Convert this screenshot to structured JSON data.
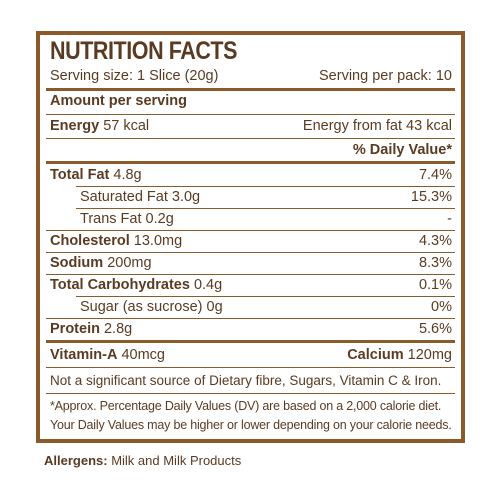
{
  "title": "NUTRITION FACTS",
  "serving_size": "Serving size: 1 Slice (20g)",
  "serving_per_pack": "Serving per pack: 10",
  "amount_per_serving": "Amount per serving",
  "energy": {
    "label": "Energy",
    "value": "57 kcal"
  },
  "energy_from_fat": "Energy from fat 43 kcal",
  "daily_value_header": "% Daily Value*",
  "nutrients": [
    {
      "label": "Total Fat",
      "amount": "4.8g",
      "dv": "7.4%"
    },
    {
      "label": "Saturated Fat",
      "amount": "3.0g",
      "dv": "15.3%"
    },
    {
      "label": "Trans Fat",
      "amount": "0.2g",
      "dv": "-"
    },
    {
      "label": "Cholesterol",
      "amount": "13.0mg",
      "dv": "4.3%"
    },
    {
      "label": "Sodium",
      "amount": "200mg",
      "dv": "8.3%"
    },
    {
      "label": "Total Carbohydrates",
      "amount": "0.4g",
      "dv": "0.1%"
    },
    {
      "label": "Sugar (as sucrose)",
      "amount": "0g",
      "dv": "0%"
    },
    {
      "label": "Protein",
      "amount": "2.8g",
      "dv": "5.6%"
    }
  ],
  "vitamin_a": {
    "label": "Vitamin-A",
    "value": "40mcg"
  },
  "calcium": {
    "label": "Calcium",
    "value": "120mg"
  },
  "not_significant": "Not a significant source of Dietary fibre, Sugars, Vitamin C & Iron.",
  "footnote_line1": "*Approx. Percentage Daily Values (DV) are based on a 2,000 calorie diet.",
  "footnote_line2": "Your Daily Values may be higher or lower depending on your calorie needs.",
  "allergens": {
    "label": "Allergens:",
    "value": "Milk and Milk Products"
  },
  "colors": {
    "border": "#8a5a2b",
    "text": "#5a3b22"
  }
}
